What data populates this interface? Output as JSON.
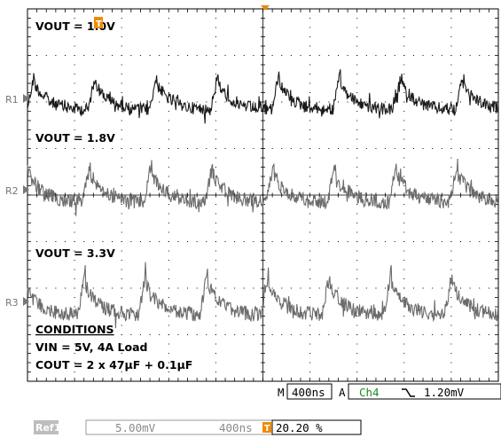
{
  "traces": [
    {
      "ref": "R1",
      "label": "VOUT = 1.0V",
      "color": "#1a1a1a"
    },
    {
      "ref": "R2",
      "label": "VOUT = 1.8V",
      "color": "#6b6b6b"
    },
    {
      "ref": "R3",
      "label": "VOUT = 3.3V",
      "color": "#6b6b6b"
    }
  ],
  "conditions": {
    "title": "CONDITIONS",
    "line1": "VIN = 5V, 4A Load",
    "line2": "COUT = 2 x 47µF + 0.1µF"
  },
  "status_bar": {
    "mode": "M",
    "timebase": "400ns",
    "trigger_mode": "A",
    "trigger_channel": "Ch4",
    "trigger_slope_icon": "falling-edge-icon",
    "trigger_level": "1.20mV"
  },
  "ref_bar": {
    "ref_label": "Ref1",
    "scale": "5.00mV",
    "timebase": "400ns",
    "trigger_icon": "trigger-position-icon",
    "trigger_position": "20.20 %"
  },
  "colors": {
    "trigger_marker": "#f08a00",
    "trigger_channel": "#1a8a1a",
    "ref_label_bg": "#bdbdbd",
    "grid": "#000000"
  }
}
